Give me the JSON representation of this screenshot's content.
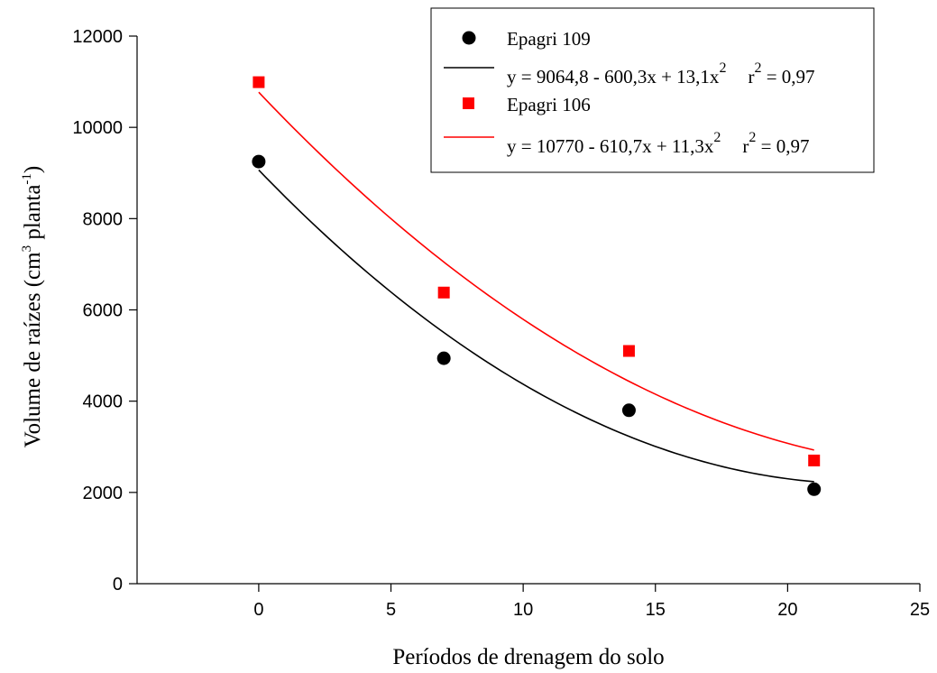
{
  "chart_data": {
    "type": "scatter",
    "xlabel": "Períodos de drenagem do solo",
    "ylabel_parts": {
      "before_sup1": "Volume de raízes (cm",
      "sup1": "3",
      "between": " planta",
      "sup2": "-1",
      "after": ")"
    },
    "xlim": [
      -4.6,
      25
    ],
    "ylim": [
      0,
      12000
    ],
    "xticks": [
      0,
      5,
      10,
      15,
      20,
      25
    ],
    "yticks": [
      0,
      2000,
      4000,
      6000,
      8000,
      10000,
      12000
    ],
    "grid": false,
    "legend_position": "top-right",
    "series": [
      {
        "name": "Epagri 109",
        "marker": "circle",
        "color": "#000000",
        "points": [
          {
            "x": 0,
            "y": 9250
          },
          {
            "x": 7,
            "y": 4940
          },
          {
            "x": 14,
            "y": 3800
          },
          {
            "x": 21,
            "y": 2070
          }
        ],
        "fit": {
          "equation_main": "y = 9064,8 - 600,3x + 13,1x",
          "equation_sup": "2",
          "r2_label": "r",
          "r2_sup": "2",
          "r2_value": " = 0,97",
          "coefficients": [
            9064.8,
            -600.3,
            13.1
          ],
          "x_range": [
            0,
            21
          ]
        }
      },
      {
        "name": "Epagri 106",
        "marker": "square",
        "color": "#ff0000",
        "points": [
          {
            "x": 0,
            "y": 10990
          },
          {
            "x": 7,
            "y": 6380
          },
          {
            "x": 14,
            "y": 5100
          },
          {
            "x": 21,
            "y": 2700
          }
        ],
        "fit": {
          "equation_main": "y = 10770 - 610,7x + 11,3x",
          "equation_sup": "2",
          "r2_label": "r",
          "r2_sup": "2",
          "r2_value": " = 0,97",
          "coefficients": [
            10770,
            -610.7,
            11.3
          ],
          "x_range": [
            0,
            21
          ]
        }
      }
    ]
  }
}
